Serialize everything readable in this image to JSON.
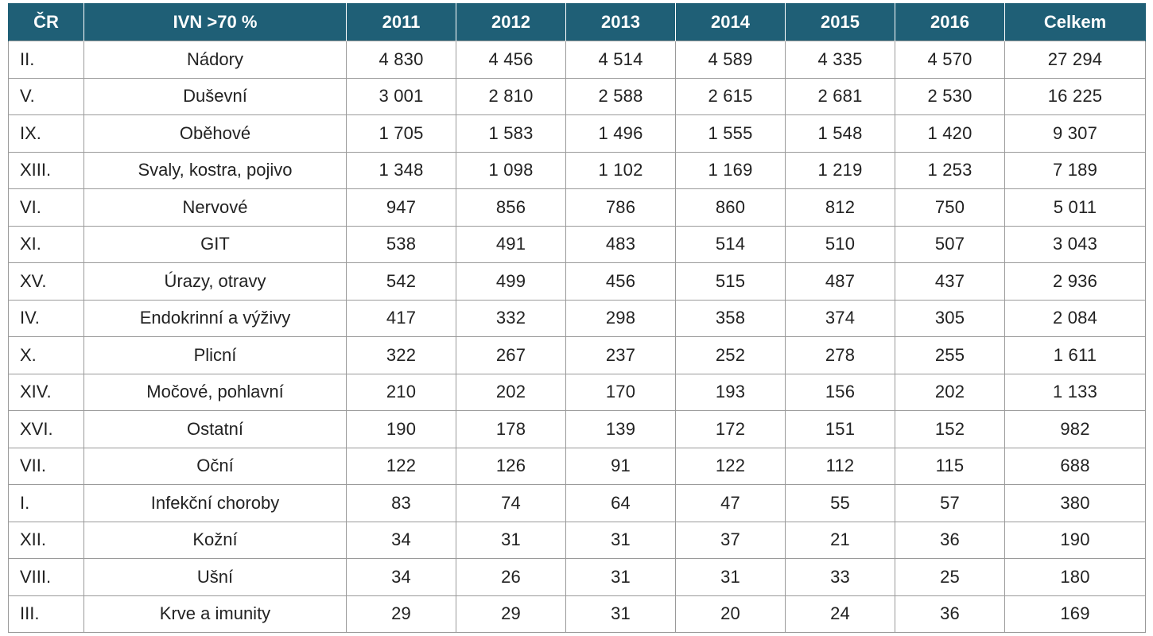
{
  "table": {
    "headers": [
      "ČR",
      "IVN >70 %",
      "2011",
      "2012",
      "2013",
      "2014",
      "2015",
      "2016",
      "Celkem"
    ],
    "rows": [
      [
        "II.",
        "Nádory",
        "4 830",
        "4 456",
        "4 514",
        "4 589",
        "4 335",
        "4 570",
        "27 294"
      ],
      [
        "V.",
        "Duševní",
        "3 001",
        "2 810",
        "2 588",
        "2 615",
        "2 681",
        "2 530",
        "16 225"
      ],
      [
        "IX.",
        "Oběhové",
        "1 705",
        "1 583",
        "1 496",
        "1 555",
        "1 548",
        "1 420",
        "9 307"
      ],
      [
        "XIII.",
        "Svaly, kostra, pojivo",
        "1 348",
        "1 098",
        "1 102",
        "1 169",
        "1 219",
        "1 253",
        "7 189"
      ],
      [
        "VI.",
        "Nervové",
        "947",
        "856",
        "786",
        "860",
        "812",
        "750",
        "5 011"
      ],
      [
        "XI.",
        "GIT",
        "538",
        "491",
        "483",
        "514",
        "510",
        "507",
        "3 043"
      ],
      [
        "XV.",
        "Úrazy, otravy",
        "542",
        "499",
        "456",
        "515",
        "487",
        "437",
        "2 936"
      ],
      [
        "IV.",
        "Endokrinní a výživy",
        "417",
        "332",
        "298",
        "358",
        "374",
        "305",
        "2 084"
      ],
      [
        "X.",
        "Plicní",
        "322",
        "267",
        "237",
        "252",
        "278",
        "255",
        "1 611"
      ],
      [
        "XIV.",
        "Močové, pohlavní",
        "210",
        "202",
        "170",
        "193",
        "156",
        "202",
        "1 133"
      ],
      [
        "XVI.",
        "Ostatní",
        "190",
        "178",
        "139",
        "172",
        "151",
        "152",
        "982"
      ],
      [
        "VII.",
        "Oční",
        "122",
        "126",
        "91",
        "122",
        "112",
        "115",
        "688"
      ],
      [
        "I.",
        "Infekční choroby",
        "83",
        "74",
        "64",
        "47",
        "55",
        "57",
        "380"
      ],
      [
        "XII.",
        "Kožní",
        "34",
        "31",
        "31",
        "37",
        "21",
        "36",
        "190"
      ],
      [
        "VIII.",
        "Ušní",
        "34",
        "26",
        "31",
        "31",
        "33",
        "25",
        "180"
      ],
      [
        "III.",
        "Krve a imunity",
        "29",
        "29",
        "31",
        "20",
        "24",
        "36",
        "169"
      ]
    ]
  },
  "colors": {
    "header_bg": "#1f5f76",
    "header_text": "#ffffff",
    "border": "#9a9a9a"
  }
}
